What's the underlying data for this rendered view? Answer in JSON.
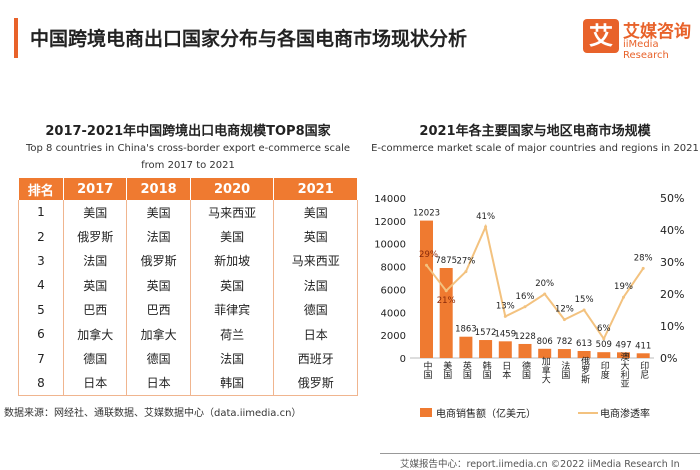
{
  "header": {
    "title": "中国跨境电商出口国家分布与各国电商市场现状分析",
    "logo_mark": "艾",
    "logo_cn": "艾媒咨询",
    "logo_en": "iiMedia Research"
  },
  "table": {
    "title": "2017-2021年中国跨境出口电商规模TOP8国家",
    "subtitle_line1": "Top 8 countries in China's cross-border export e-commerce scale",
    "subtitle_line2": "from 2017 to 2021",
    "headers": [
      "排名",
      "2017",
      "2018",
      "2020",
      "2021"
    ],
    "rows": [
      [
        "1",
        "美国",
        "美国",
        "马来西亚",
        "美国"
      ],
      [
        "2",
        "俄罗斯",
        "法国",
        "美国",
        "英国"
      ],
      [
        "3",
        "法国",
        "俄罗斯",
        "新加坡",
        "马来西亚"
      ],
      [
        "4",
        "英国",
        "英国",
        "英国",
        "法国"
      ],
      [
        "5",
        "巴西",
        "巴西",
        "菲律宾",
        "德国"
      ],
      [
        "6",
        "加拿大",
        "加拿大",
        "荷兰",
        "日本"
      ],
      [
        "7",
        "德国",
        "德国",
        "法国",
        "西班牙"
      ],
      [
        "8",
        "日本",
        "日本",
        "韩国",
        "俄罗斯"
      ]
    ],
    "source": "数据来源：网经社、通联数据、艾媒数据中心（data.iimedia.cn）"
  },
  "chart_data": {
    "type": "bar+line",
    "title": "2021年各主要国家与地区电商市场规模",
    "subtitle": "E-commerce market scale of major countries and regions in 2021",
    "categories": [
      "中国",
      "美国",
      "英国",
      "韩国",
      "日本",
      "德国",
      "加拿大",
      "法国",
      "俄罗斯",
      "印度",
      "澳大利亚",
      "印尼"
    ],
    "series": [
      {
        "name": "电商销售额（亿美元）",
        "type": "bar",
        "axis": "left",
        "color": "#ef7a30",
        "values": [
          12023,
          7875,
          1863,
          1572,
          1459,
          1228,
          806,
          782,
          613,
          509,
          497,
          411
        ]
      },
      {
        "name": "电商渗透率",
        "type": "line",
        "axis": "right",
        "color": "#f3c27f",
        "values": [
          29,
          21,
          27,
          41,
          13,
          16,
          20,
          12,
          15,
          6,
          19,
          28
        ]
      }
    ],
    "ylim_left": [
      0,
      14000
    ],
    "yticks_left": [
      "0",
      "2000",
      "4000",
      "6000",
      "8000",
      "10000",
      "12000",
      "14000"
    ],
    "ylim_right": [
      0,
      50
    ],
    "yticks_right": [
      "0%",
      "10%",
      "20%",
      "30%",
      "40%",
      "50%"
    ],
    "grid": false,
    "legend": "bottom"
  },
  "footer": {
    "text": "艾媒报告中心：report.iimedia.cn   ©2022  iiMedia Research  In"
  }
}
